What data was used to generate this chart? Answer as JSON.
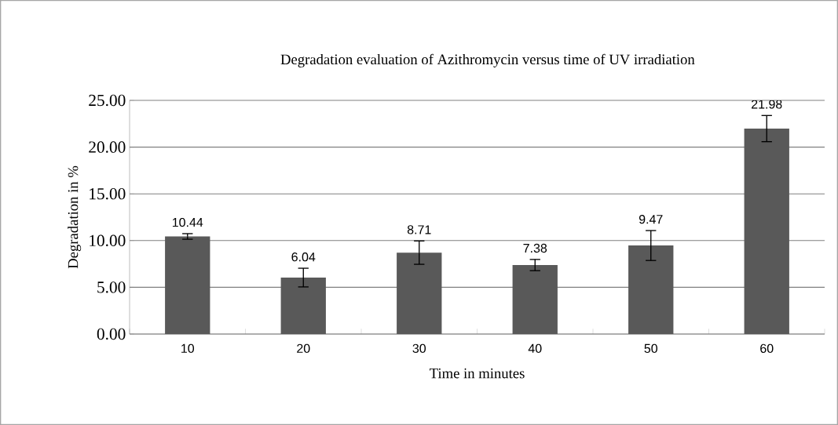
{
  "chart_data": {
    "type": "bar",
    "title": "Degradation evaluation of Azithromycin versus time of UV irradiation",
    "xlabel": "Time in minutes",
    "ylabel": "Degradation in %",
    "categories": [
      "10",
      "20",
      "30",
      "40",
      "50",
      "60"
    ],
    "values": [
      10.44,
      6.04,
      8.71,
      7.38,
      9.47,
      21.98
    ],
    "errors": [
      0.3,
      1.0,
      1.25,
      0.6,
      1.6,
      1.4
    ],
    "color": "#595959",
    "data_labels": true,
    "grid": "y",
    "ylim": [
      0,
      25
    ],
    "yticks": [
      {
        "value": 0,
        "label": "0.00"
      },
      {
        "value": 5,
        "label": "5.00"
      },
      {
        "value": 10,
        "label": "10.00"
      },
      {
        "value": 15,
        "label": "15.00"
      },
      {
        "value": 20,
        "label": "20.00"
      },
      {
        "value": 25,
        "label": "25.00"
      }
    ]
  }
}
